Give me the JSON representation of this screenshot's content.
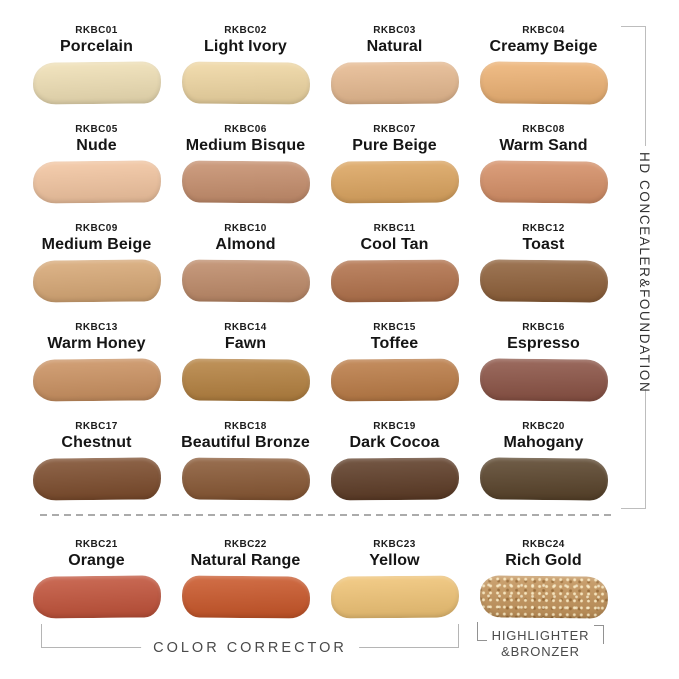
{
  "side_title": "HD CONCEALER&FOUNDATION",
  "groups": {
    "color_corrector": "COLOR CORRECTOR",
    "highlighter_line1": "HIGHLIGHTER",
    "highlighter_line2": "&BRONZER"
  },
  "shades": [
    {
      "code": "RKBC01",
      "name": "Porcelain",
      "color": "#F0E0B5"
    },
    {
      "code": "RKBC02",
      "name": "Light Ivory",
      "color": "#F0D7A2"
    },
    {
      "code": "RKBC03",
      "name": "Natural",
      "color": "#E7BA90"
    },
    {
      "code": "RKBC04",
      "name": "Creamy Beige",
      "color": "#EEB273"
    },
    {
      "code": "RKBC05",
      "name": "Nude",
      "color": "#F3C5A0"
    },
    {
      "code": "RKBC06",
      "name": "Medium Bisque",
      "color": "#C68E6C"
    },
    {
      "code": "RKBC07",
      "name": "Pure Beige",
      "color": "#DDA55F"
    },
    {
      "code": "RKBC08",
      "name": "Warm Sand",
      "color": "#D68F66"
    },
    {
      "code": "RKBC09",
      "name": "Medium Beige",
      "color": "#D8A875"
    },
    {
      "code": "RKBC10",
      "name": "Almond",
      "color": "#BE8A68"
    },
    {
      "code": "RKBC11",
      "name": "Cool Tan",
      "color": "#B2714A"
    },
    {
      "code": "RKBC12",
      "name": "Toast",
      "color": "#8E5F38"
    },
    {
      "code": "RKBC13",
      "name": "Warm Honey",
      "color": "#CB9160"
    },
    {
      "code": "RKBC14",
      "name": "Fawn",
      "color": "#B5813F"
    },
    {
      "code": "RKBC15",
      "name": "Toffee",
      "color": "#BB7B45"
    },
    {
      "code": "RKBC16",
      "name": "Espresso",
      "color": "#8B5244"
    },
    {
      "code": "RKBC17",
      "name": "Chestnut",
      "color": "#7C4B2B"
    },
    {
      "code": "RKBC18",
      "name": "Beautiful Bronze",
      "color": "#885733"
    },
    {
      "code": "RKBC19",
      "name": "Dark Cocoa",
      "color": "#5D3B25"
    },
    {
      "code": "RKBC20",
      "name": "Mahogany",
      "color": "#584229"
    },
    {
      "code": "RKBC21",
      "name": "Orange",
      "color": "#C25239"
    },
    {
      "code": "RKBC22",
      "name": "Natural Range",
      "color": "#CA5628"
    },
    {
      "code": "RKBC23",
      "name": "Yellow",
      "color": "#F1C475"
    },
    {
      "code": "RKBC24",
      "name": "Rich Gold",
      "color": "#C4945A"
    }
  ],
  "accent_colors": {
    "bracket_line": "#BDBDBD",
    "group_text": "#4A4A4A",
    "shade_text": "#191919"
  }
}
